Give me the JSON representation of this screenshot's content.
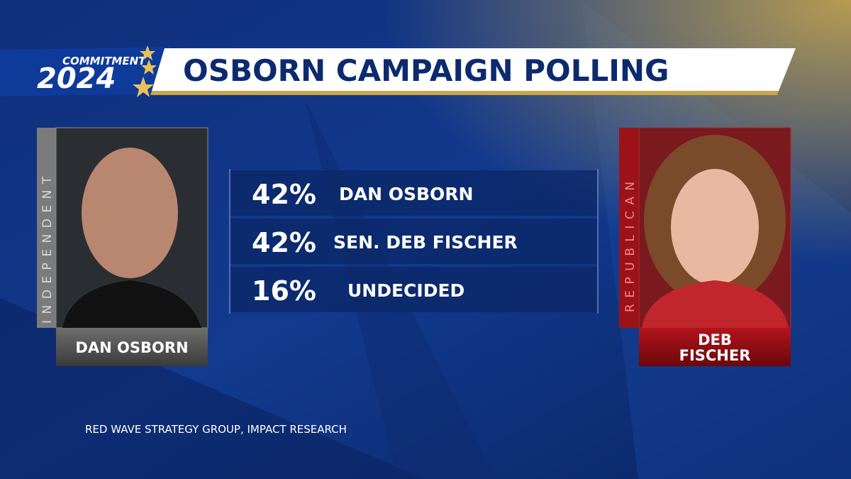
{
  "logo": {
    "line1": "COMMITMENT",
    "line2": "2024"
  },
  "header": {
    "title": "OSBORN CAMPAIGN POLLING"
  },
  "candidates": [
    {
      "party": "INDEPENDENT",
      "name_lines": [
        "DAN OSBORN"
      ]
    },
    {
      "party": "REPUBLICAN",
      "name_lines": [
        "DEB",
        "FISCHER"
      ]
    }
  ],
  "results": [
    {
      "percent": "42%",
      "label": "DAN OSBORN"
    },
    {
      "percent": "42%",
      "label": "SEN. DEB FISCHER"
    },
    {
      "percent": "16%",
      "label": "UNDECIDED"
    }
  ],
  "source": "RED WAVE STRATEGY GROUP, IMPACT RESEARCH"
}
